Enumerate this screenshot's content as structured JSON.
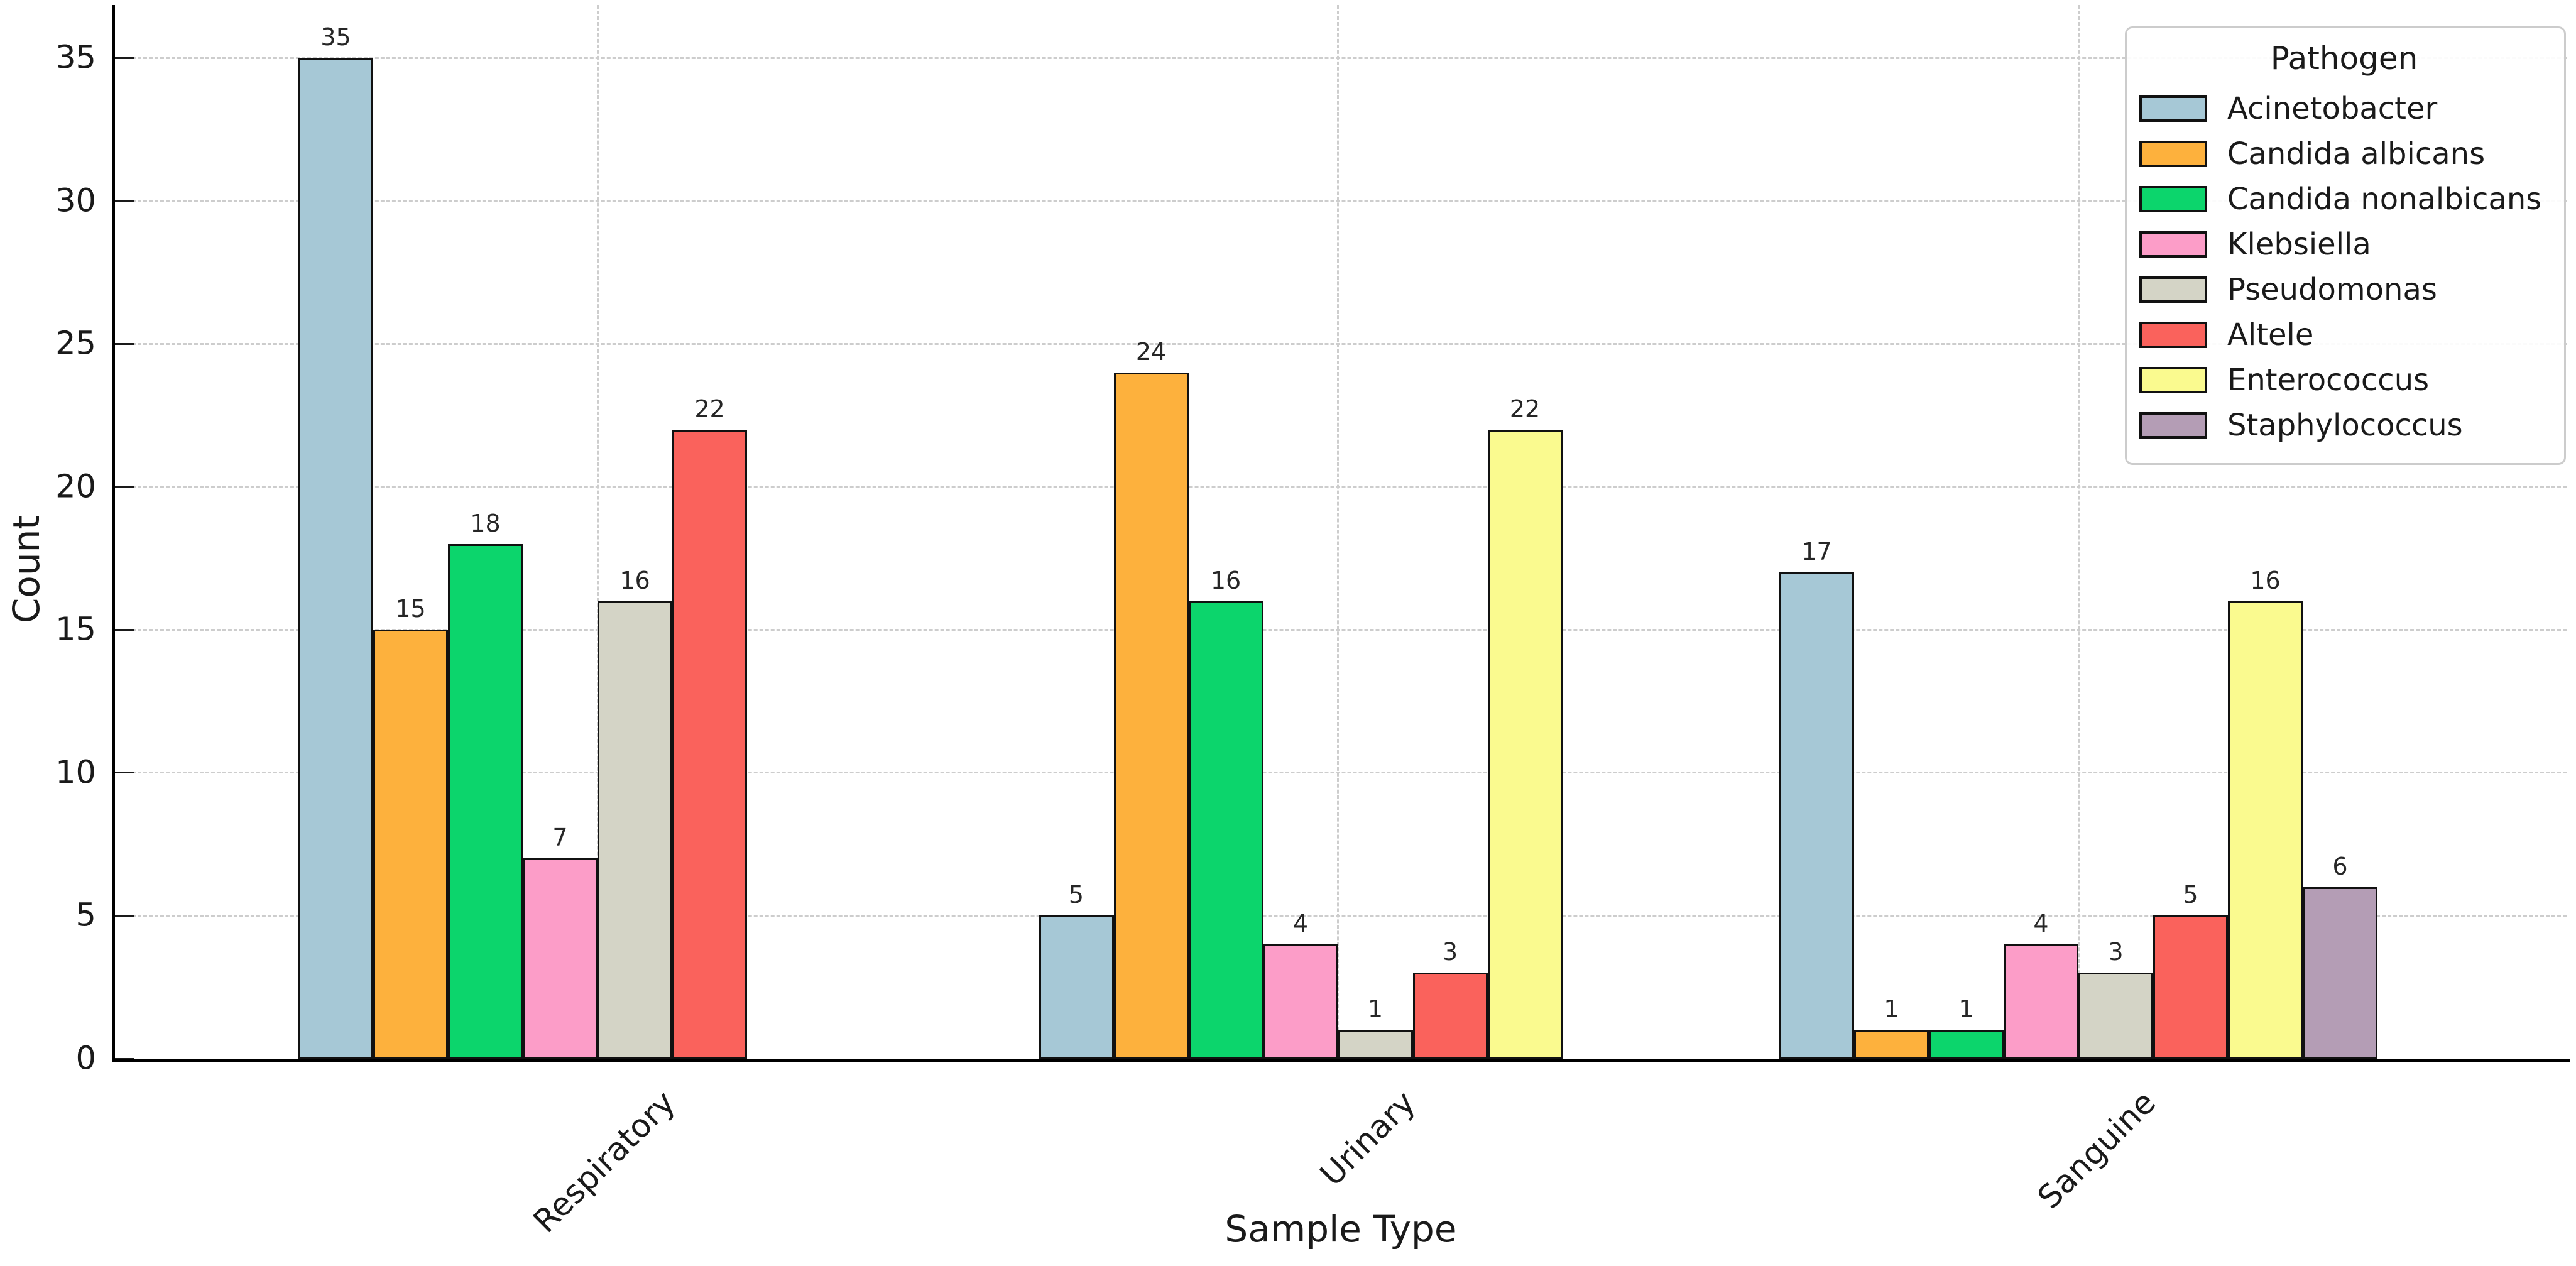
{
  "chart_data": {
    "type": "bar",
    "title": "",
    "xlabel": "Sample Type",
    "ylabel": "Count",
    "categories": [
      "Respiratory",
      "Urinary",
      "Sanguine"
    ],
    "series": [
      {
        "name": "Acinetobacter",
        "color": "#a6c8d6",
        "values": [
          35,
          5,
          17
        ]
      },
      {
        "name": "Candida albicans",
        "color": "#fdb13d",
        "values": [
          15,
          24,
          1
        ]
      },
      {
        "name": "Candida nonalbicans",
        "color": "#0cd56c",
        "values": [
          18,
          16,
          1
        ]
      },
      {
        "name": "Klebsiella",
        "color": "#fc9dc8",
        "values": [
          7,
          4,
          4
        ]
      },
      {
        "name": "Pseudomonas",
        "color": "#d4d4c6",
        "values": [
          16,
          1,
          3
        ]
      },
      {
        "name": "Altele",
        "color": "#fa625c",
        "values": [
          22,
          3,
          5
        ]
      },
      {
        "name": "Enterococcus",
        "color": "#fafa8f",
        "values": [
          0,
          22,
          16
        ]
      },
      {
        "name": "Staphylococcus",
        "color": "#b49db5",
        "values": [
          0,
          0,
          6
        ]
      }
    ],
    "ylim": [
      0,
      35
    ],
    "ytick_step": 5,
    "yticks": [
      0,
      5,
      10,
      15,
      20,
      25,
      30,
      35
    ],
    "legend_title": "Pathogen",
    "legend_position": "upper right",
    "grid": "dashed-both",
    "bar_edge_color": "#111111",
    "value_labels_shown": true
  }
}
